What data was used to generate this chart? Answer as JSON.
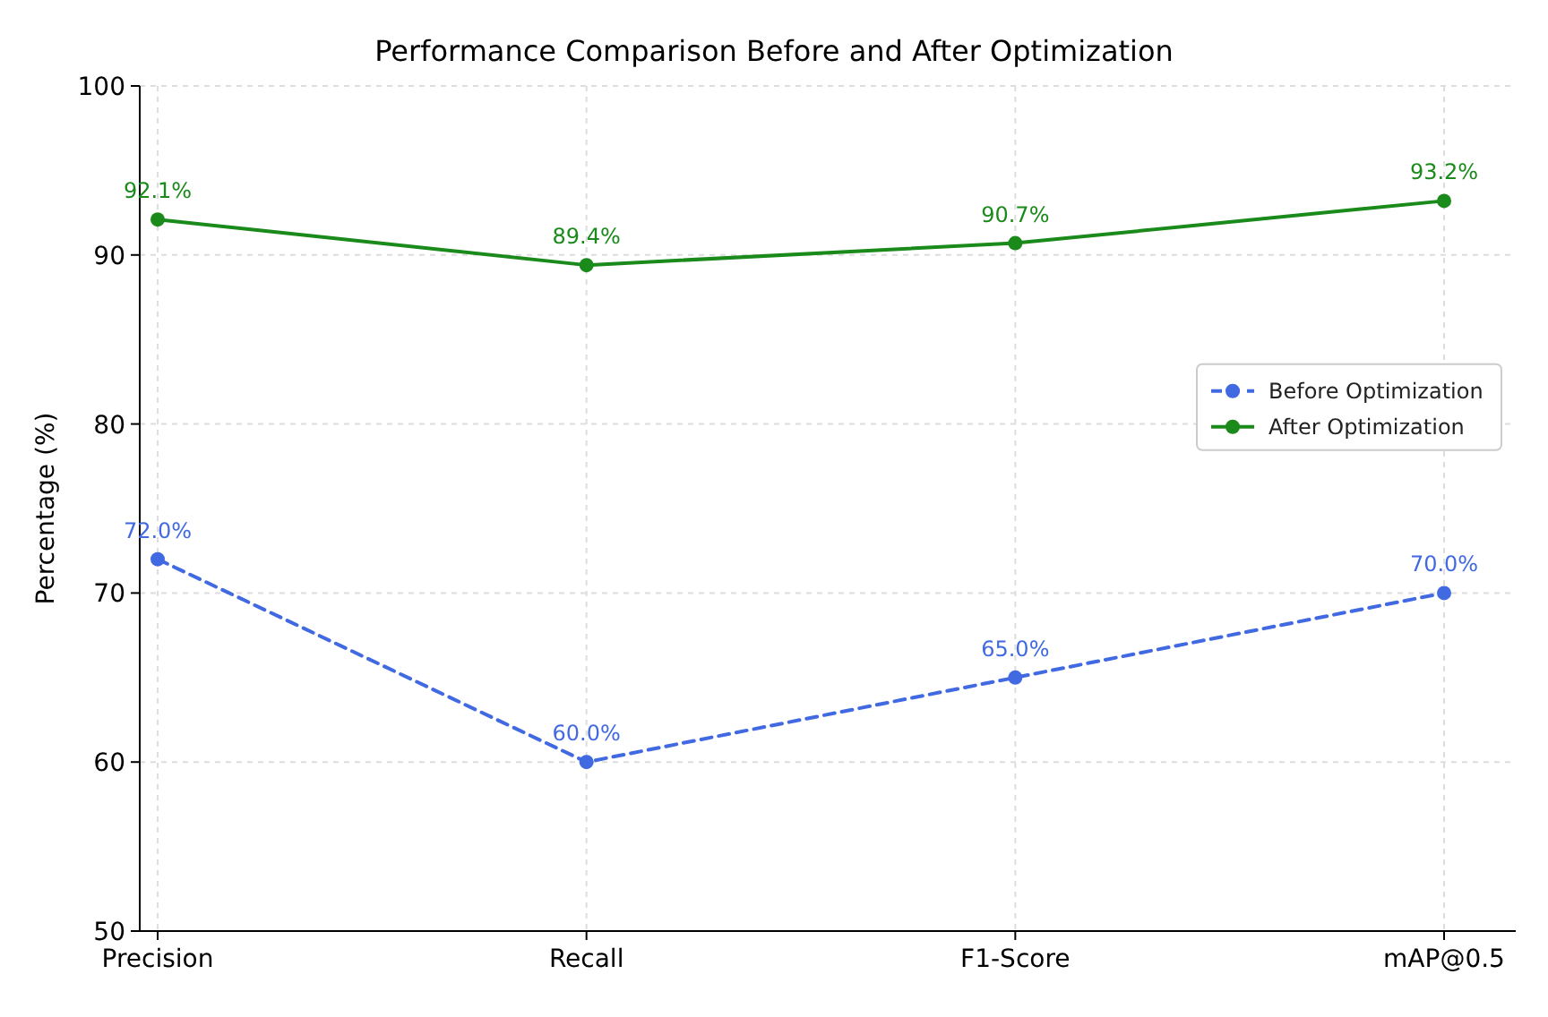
{
  "chart_data": {
    "type": "line",
    "title": "Performance Comparison Before and After Optimization",
    "ylabel": "Percentage (%)",
    "categories": [
      "Precision",
      "Recall",
      "F1-Score",
      "mAP@0.5"
    ],
    "series": [
      {
        "name": "Before Optimization",
        "color": "#4169e1",
        "values": [
          72.0,
          60.0,
          65.0,
          70.0
        ],
        "value_labels": [
          "72.0%",
          "60.0%",
          "65.0%",
          "70.0%"
        ],
        "line_style": "dashed"
      },
      {
        "name": "After Optimization",
        "color": "#1a8a1a",
        "values": [
          92.1,
          89.4,
          90.7,
          93.2
        ],
        "value_labels": [
          "92.1%",
          "89.4%",
          "90.7%",
          "93.2%"
        ],
        "line_style": "solid"
      }
    ],
    "ylim": [
      50,
      100
    ],
    "yticks": [
      50,
      60,
      70,
      80,
      90,
      100
    ],
    "grid": true,
    "legend": "right",
    "marker": "circle"
  }
}
